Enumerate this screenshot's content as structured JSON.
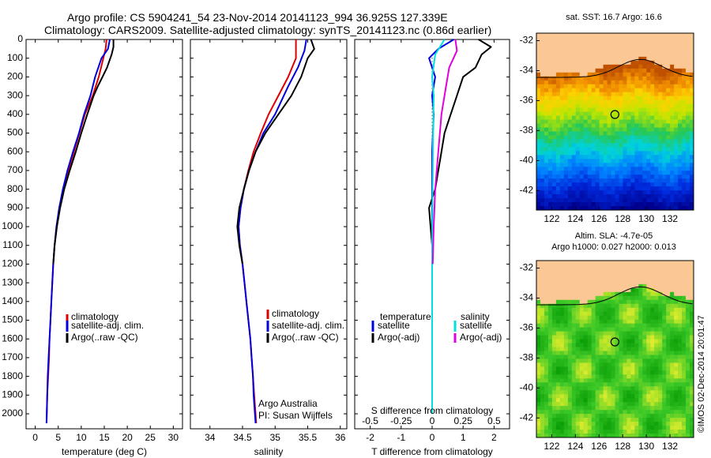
{
  "header": {
    "line1": "Argo profile: CS 5904241_54 23-Nov-2014 20141123_994 36.925S 127.339E",
    "line2": "Climatology: CARS2009. Satellite-adjusted climatology: synTS_20141123.nc (0.86d earlier)"
  },
  "colors": {
    "climatology": "#dd0000",
    "satellite": "#0000dd",
    "argo": "#000000",
    "sal_satellite": "#00e0e0",
    "sal_argo": "#e000e0"
  },
  "chart_data": [
    {
      "id": "temperature",
      "type": "line",
      "xlabel": "temperature (deg C)",
      "ylabel": "",
      "xlim": [
        -2,
        32
      ],
      "ylim": [
        2080,
        0
      ],
      "xticks": [
        0,
        5,
        10,
        15,
        20,
        25,
        30
      ],
      "yticks": [
        0,
        100,
        200,
        300,
        400,
        500,
        600,
        700,
        800,
        900,
        1000,
        1100,
        1200,
        1300,
        1400,
        1500,
        1600,
        1700,
        1800,
        1900,
        2000
      ],
      "legend": [
        "climatology",
        "satellite-adj. clim.",
        "Argo(..raw -QC)"
      ],
      "series": [
        {
          "name": "climatology",
          "color": "#dd0000",
          "points": [
            [
              15.5,
              0
            ],
            [
              15.3,
              50
            ],
            [
              14.8,
              100
            ],
            [
              13.8,
              200
            ],
            [
              12.5,
              300
            ],
            [
              10.8,
              400
            ],
            [
              9.6,
              500
            ],
            [
              8.4,
              600
            ],
            [
              7.2,
              700
            ],
            [
              6.1,
              800
            ],
            [
              5.3,
              900
            ],
            [
              4.7,
              1000
            ],
            [
              4.2,
              1100
            ],
            [
              3.9,
              1200
            ],
            [
              3.7,
              1300
            ],
            [
              3.5,
              1400
            ],
            [
              3.3,
              1500
            ],
            [
              3.1,
              1600
            ],
            [
              3.0,
              1700
            ],
            [
              2.8,
              1800
            ],
            [
              2.6,
              1900
            ],
            [
              2.5,
              2000
            ],
            [
              2.45,
              2050
            ]
          ]
        },
        {
          "name": "satellite-adj. clim.",
          "color": "#0000dd",
          "points": [
            [
              16.2,
              0
            ],
            [
              15.8,
              50
            ],
            [
              14.4,
              100
            ],
            [
              13.0,
              200
            ],
            [
              12.0,
              300
            ],
            [
              10.6,
              400
            ],
            [
              9.5,
              500
            ],
            [
              8.2,
              600
            ],
            [
              7.0,
              700
            ],
            [
              6.0,
              800
            ],
            [
              5.2,
              900
            ],
            [
              4.6,
              1000
            ],
            [
              4.2,
              1100
            ],
            [
              3.9,
              1200
            ],
            [
              3.7,
              1300
            ],
            [
              3.5,
              1400
            ],
            [
              3.3,
              1500
            ],
            [
              3.1,
              1600
            ],
            [
              2.9,
              1700
            ],
            [
              2.7,
              1800
            ],
            [
              2.6,
              1900
            ],
            [
              2.5,
              2000
            ],
            [
              2.45,
              2050
            ]
          ]
        },
        {
          "name": "Argo(..raw -QC)",
          "color": "#000000",
          "points": [
            [
              17.0,
              0
            ],
            [
              17.0,
              40
            ],
            [
              16.6,
              80
            ],
            [
              15.6,
              150
            ],
            [
              14.6,
              200
            ],
            [
              13.6,
              250
            ],
            [
              12.7,
              300
            ],
            [
              11.3,
              400
            ],
            [
              10.0,
              500
            ],
            [
              8.8,
              600
            ],
            [
              7.5,
              700
            ],
            [
              6.3,
              800
            ],
            [
              5.4,
              900
            ],
            [
              4.7,
              1000
            ],
            [
              4.2,
              1100
            ],
            [
              3.9,
              1200
            ]
          ]
        }
      ]
    },
    {
      "id": "salinity",
      "type": "line",
      "xlabel": "salinity",
      "ylabel": "",
      "xlim": [
        33.7,
        36.1
      ],
      "ylim": [
        2080,
        0
      ],
      "xticks": [
        34,
        34.5,
        35,
        35.5,
        36
      ],
      "legend": [
        "climatology",
        "satellite-adj. clim.",
        "Argo(..raw -QC)"
      ],
      "annotation": [
        "Argo Australia",
        "PI: Susan Wijffels"
      ],
      "series": [
        {
          "name": "climatology",
          "color": "#dd0000",
          "points": [
            [
              35.32,
              0
            ],
            [
              35.32,
              100
            ],
            [
              35.2,
              200
            ],
            [
              35.05,
              300
            ],
            [
              34.9,
              400
            ],
            [
              34.78,
              500
            ],
            [
              34.67,
              600
            ],
            [
              34.59,
              700
            ],
            [
              34.52,
              800
            ],
            [
              34.47,
              900
            ],
            [
              34.44,
              1000
            ],
            [
              34.46,
              1100
            ],
            [
              34.5,
              1200
            ],
            [
              34.53,
              1300
            ],
            [
              34.56,
              1400
            ],
            [
              34.59,
              1500
            ],
            [
              34.62,
              1600
            ],
            [
              34.64,
              1700
            ],
            [
              34.66,
              1800
            ],
            [
              34.68,
              1900
            ],
            [
              34.7,
              2000
            ],
            [
              34.71,
              2050
            ]
          ]
        },
        {
          "name": "satellite-adj. clim.",
          "color": "#0000dd",
          "points": [
            [
              35.48,
              0
            ],
            [
              35.45,
              60
            ],
            [
              35.35,
              150
            ],
            [
              35.2,
              250
            ],
            [
              35.0,
              400
            ],
            [
              34.82,
              500
            ],
            [
              34.7,
              600
            ],
            [
              34.6,
              700
            ],
            [
              34.52,
              800
            ],
            [
              34.47,
              900
            ],
            [
              34.44,
              1000
            ],
            [
              34.46,
              1100
            ],
            [
              34.5,
              1200
            ],
            [
              34.53,
              1300
            ],
            [
              34.56,
              1400
            ],
            [
              34.59,
              1500
            ],
            [
              34.62,
              1600
            ],
            [
              34.64,
              1700
            ],
            [
              34.66,
              1800
            ],
            [
              34.67,
              1900
            ],
            [
              34.69,
              2000
            ],
            [
              34.7,
              2050
            ]
          ]
        },
        {
          "name": "Argo(..raw -QC)",
          "color": "#000000",
          "points": [
            [
              35.55,
              0
            ],
            [
              35.6,
              50
            ],
            [
              35.5,
              100
            ],
            [
              35.4,
              200
            ],
            [
              35.25,
              300
            ],
            [
              35.05,
              400
            ],
            [
              34.85,
              500
            ],
            [
              34.7,
              600
            ],
            [
              34.6,
              700
            ],
            [
              34.52,
              800
            ],
            [
              34.45,
              900
            ],
            [
              34.42,
              1000
            ],
            [
              34.45,
              1100
            ],
            [
              34.5,
              1200
            ]
          ]
        }
      ]
    },
    {
      "id": "difference",
      "type": "line",
      "xlabel": "T difference from climatology",
      "x2label": "S difference from climatology",
      "xlim": [
        -2.5,
        2.5
      ],
      "ylim": [
        2080,
        0
      ],
      "xticks": [
        -2,
        -1,
        0,
        1,
        2
      ],
      "x2ticks": [
        "-0.5",
        "-0.25",
        "0",
        "0.25",
        "0.5"
      ],
      "legend_groups": [
        {
          "title": "temperature",
          "items": [
            "satellite",
            "Argo(-adj)"
          ]
        },
        {
          "title": "salinity",
          "items": [
            "satellite",
            "Argo(-adj)"
          ]
        }
      ],
      "series": [
        {
          "name": "temperature satellite",
          "color": "#0000dd",
          "points": [
            [
              0.7,
              0
            ],
            [
              0.2,
              50
            ],
            [
              -0.1,
              100
            ],
            [
              0.1,
              200
            ],
            [
              0,
              300
            ],
            [
              0.05,
              400
            ],
            [
              0,
              600
            ],
            [
              0,
              800
            ],
            [
              0,
              1000
            ],
            [
              0,
              1200
            ]
          ]
        },
        {
          "name": "temperature Argo(-adj)",
          "color": "#000000",
          "points": [
            [
              1.5,
              0
            ],
            [
              1.9,
              40
            ],
            [
              1.6,
              80
            ],
            [
              1.4,
              150
            ],
            [
              1.0,
              200
            ],
            [
              0.8,
              300
            ],
            [
              0.6,
              400
            ],
            [
              0.4,
              500
            ],
            [
              0.3,
              600
            ],
            [
              0.2,
              700
            ],
            [
              0.1,
              800
            ],
            [
              -0.1,
              900
            ],
            [
              -0.05,
              1000
            ],
            [
              0,
              1100
            ],
            [
              0,
              1200
            ]
          ]
        },
        {
          "name": "salinity satellite",
          "color": "#00e0e0",
          "points": [
            [
              0.4,
              0
            ],
            [
              0.1,
              80
            ],
            [
              0.0,
              200
            ],
            [
              0.05,
              300
            ],
            [
              0.03,
              500
            ],
            [
              0.02,
              700
            ],
            [
              0.01,
              900
            ],
            [
              0,
              1100
            ],
            [
              0,
              1500
            ],
            [
              0,
              2000
            ]
          ]
        },
        {
          "name": "salinity Argo(-adj)",
          "color": "#e000e0",
          "points": [
            [
              0.75,
              0
            ],
            [
              0.8,
              60
            ],
            [
              0.55,
              150
            ],
            [
              0.45,
              250
            ],
            [
              0.3,
              400
            ],
            [
              0.2,
              600
            ],
            [
              0.1,
              800
            ],
            [
              0.05,
              1000
            ],
            [
              0.02,
              1200
            ]
          ]
        }
      ]
    },
    {
      "id": "sst_map",
      "type": "heatmap",
      "title": "sat. SST: 16.7  Argo: 16.6",
      "xlim": [
        120.7,
        134
      ],
      "ylim": [
        -43.3,
        -31.5
      ],
      "xticks": [
        122,
        124,
        126,
        128,
        130,
        132
      ],
      "yticks": [
        -32,
        -34,
        -36,
        -38,
        -40,
        -42
      ],
      "marker": {
        "lon": 127.339,
        "lat": -36.925
      }
    },
    {
      "id": "sla_map",
      "type": "heatmap",
      "title": "Altim. SLA: -4.7e-05",
      "subtitle": "Argo h1000: 0.027  h2000: 0.013",
      "xlim": [
        120.7,
        134
      ],
      "ylim": [
        -43.3,
        -31.5
      ],
      "xticks": [
        122,
        124,
        126,
        128,
        130,
        132
      ],
      "yticks": [
        -32,
        -34,
        -36,
        -38,
        -40,
        -42
      ],
      "marker": {
        "lon": 127.339,
        "lat": -36.925
      }
    }
  ],
  "watermark": "©IMOS 02-Dec-2014 20:01:47"
}
